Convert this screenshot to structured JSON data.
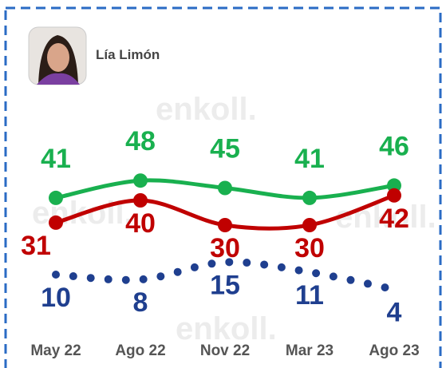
{
  "chart_data": {
    "type": "line",
    "title": "Lía Limón",
    "watermark": "enkoll.",
    "categories": [
      "May 22",
      "Ago 22",
      "Nov 22",
      "Mar 23",
      "Ago 23"
    ],
    "series": [
      {
        "color": "#19b04f",
        "style": "solid",
        "values": [
          41,
          48,
          45,
          41,
          46
        ]
      },
      {
        "color": "#c00000",
        "style": "solid",
        "values": [
          31,
          40,
          30,
          30,
          42
        ]
      },
      {
        "color": "#1f3f8f",
        "style": "dotted",
        "values": [
          10,
          8,
          15,
          11,
          4
        ]
      }
    ]
  }
}
